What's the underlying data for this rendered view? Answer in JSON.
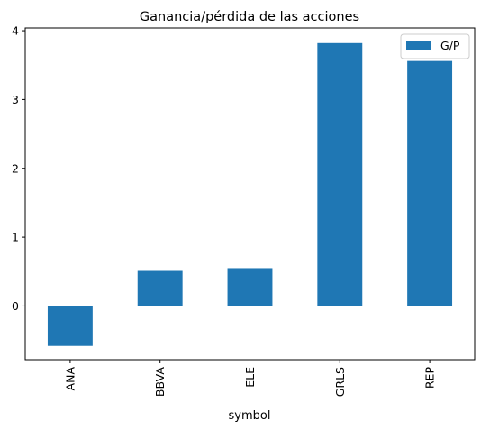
{
  "chart_data": {
    "type": "bar",
    "title": "Ganancia/pérdida de las acciones",
    "xlabel": "symbol",
    "ylabel": "",
    "categories": [
      "ANA",
      "BBVA",
      "ELE",
      "GRLS",
      "REP"
    ],
    "series": [
      {
        "name": "G/P",
        "values": [
          -0.58,
          0.51,
          0.55,
          3.82,
          3.56
        ],
        "color": "#1f77b4"
      }
    ],
    "ylim": [
      -0.78,
      4.04
    ],
    "yticks": [
      0,
      1,
      2,
      3,
      4
    ],
    "grid": false,
    "legend": "top-right",
    "tick_label_rotation": 90
  }
}
